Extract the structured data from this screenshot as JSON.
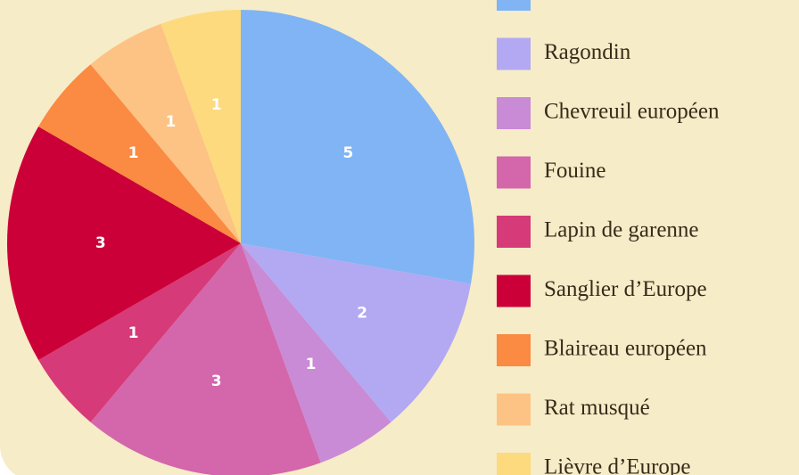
{
  "chart_data": {
    "type": "pie",
    "categories": [
      null,
      "Ragondin",
      "Chevreuil européen",
      "Fouine",
      "Lapin de garenne",
      "Sanglier d’Europe",
      "Blaireau européen",
      "Rat musqué",
      "Lièvre d’Europe"
    ],
    "values": [
      5,
      2,
      1,
      3,
      1,
      3,
      1,
      1,
      1
    ],
    "colors": [
      "#80b4f5",
      "#b3a8f2",
      "#c98ad6",
      "#d466ab",
      "#d63a78",
      "#cc0038",
      "#fb8a42",
      "#fdc384",
      "#fdda7e"
    ]
  }
}
